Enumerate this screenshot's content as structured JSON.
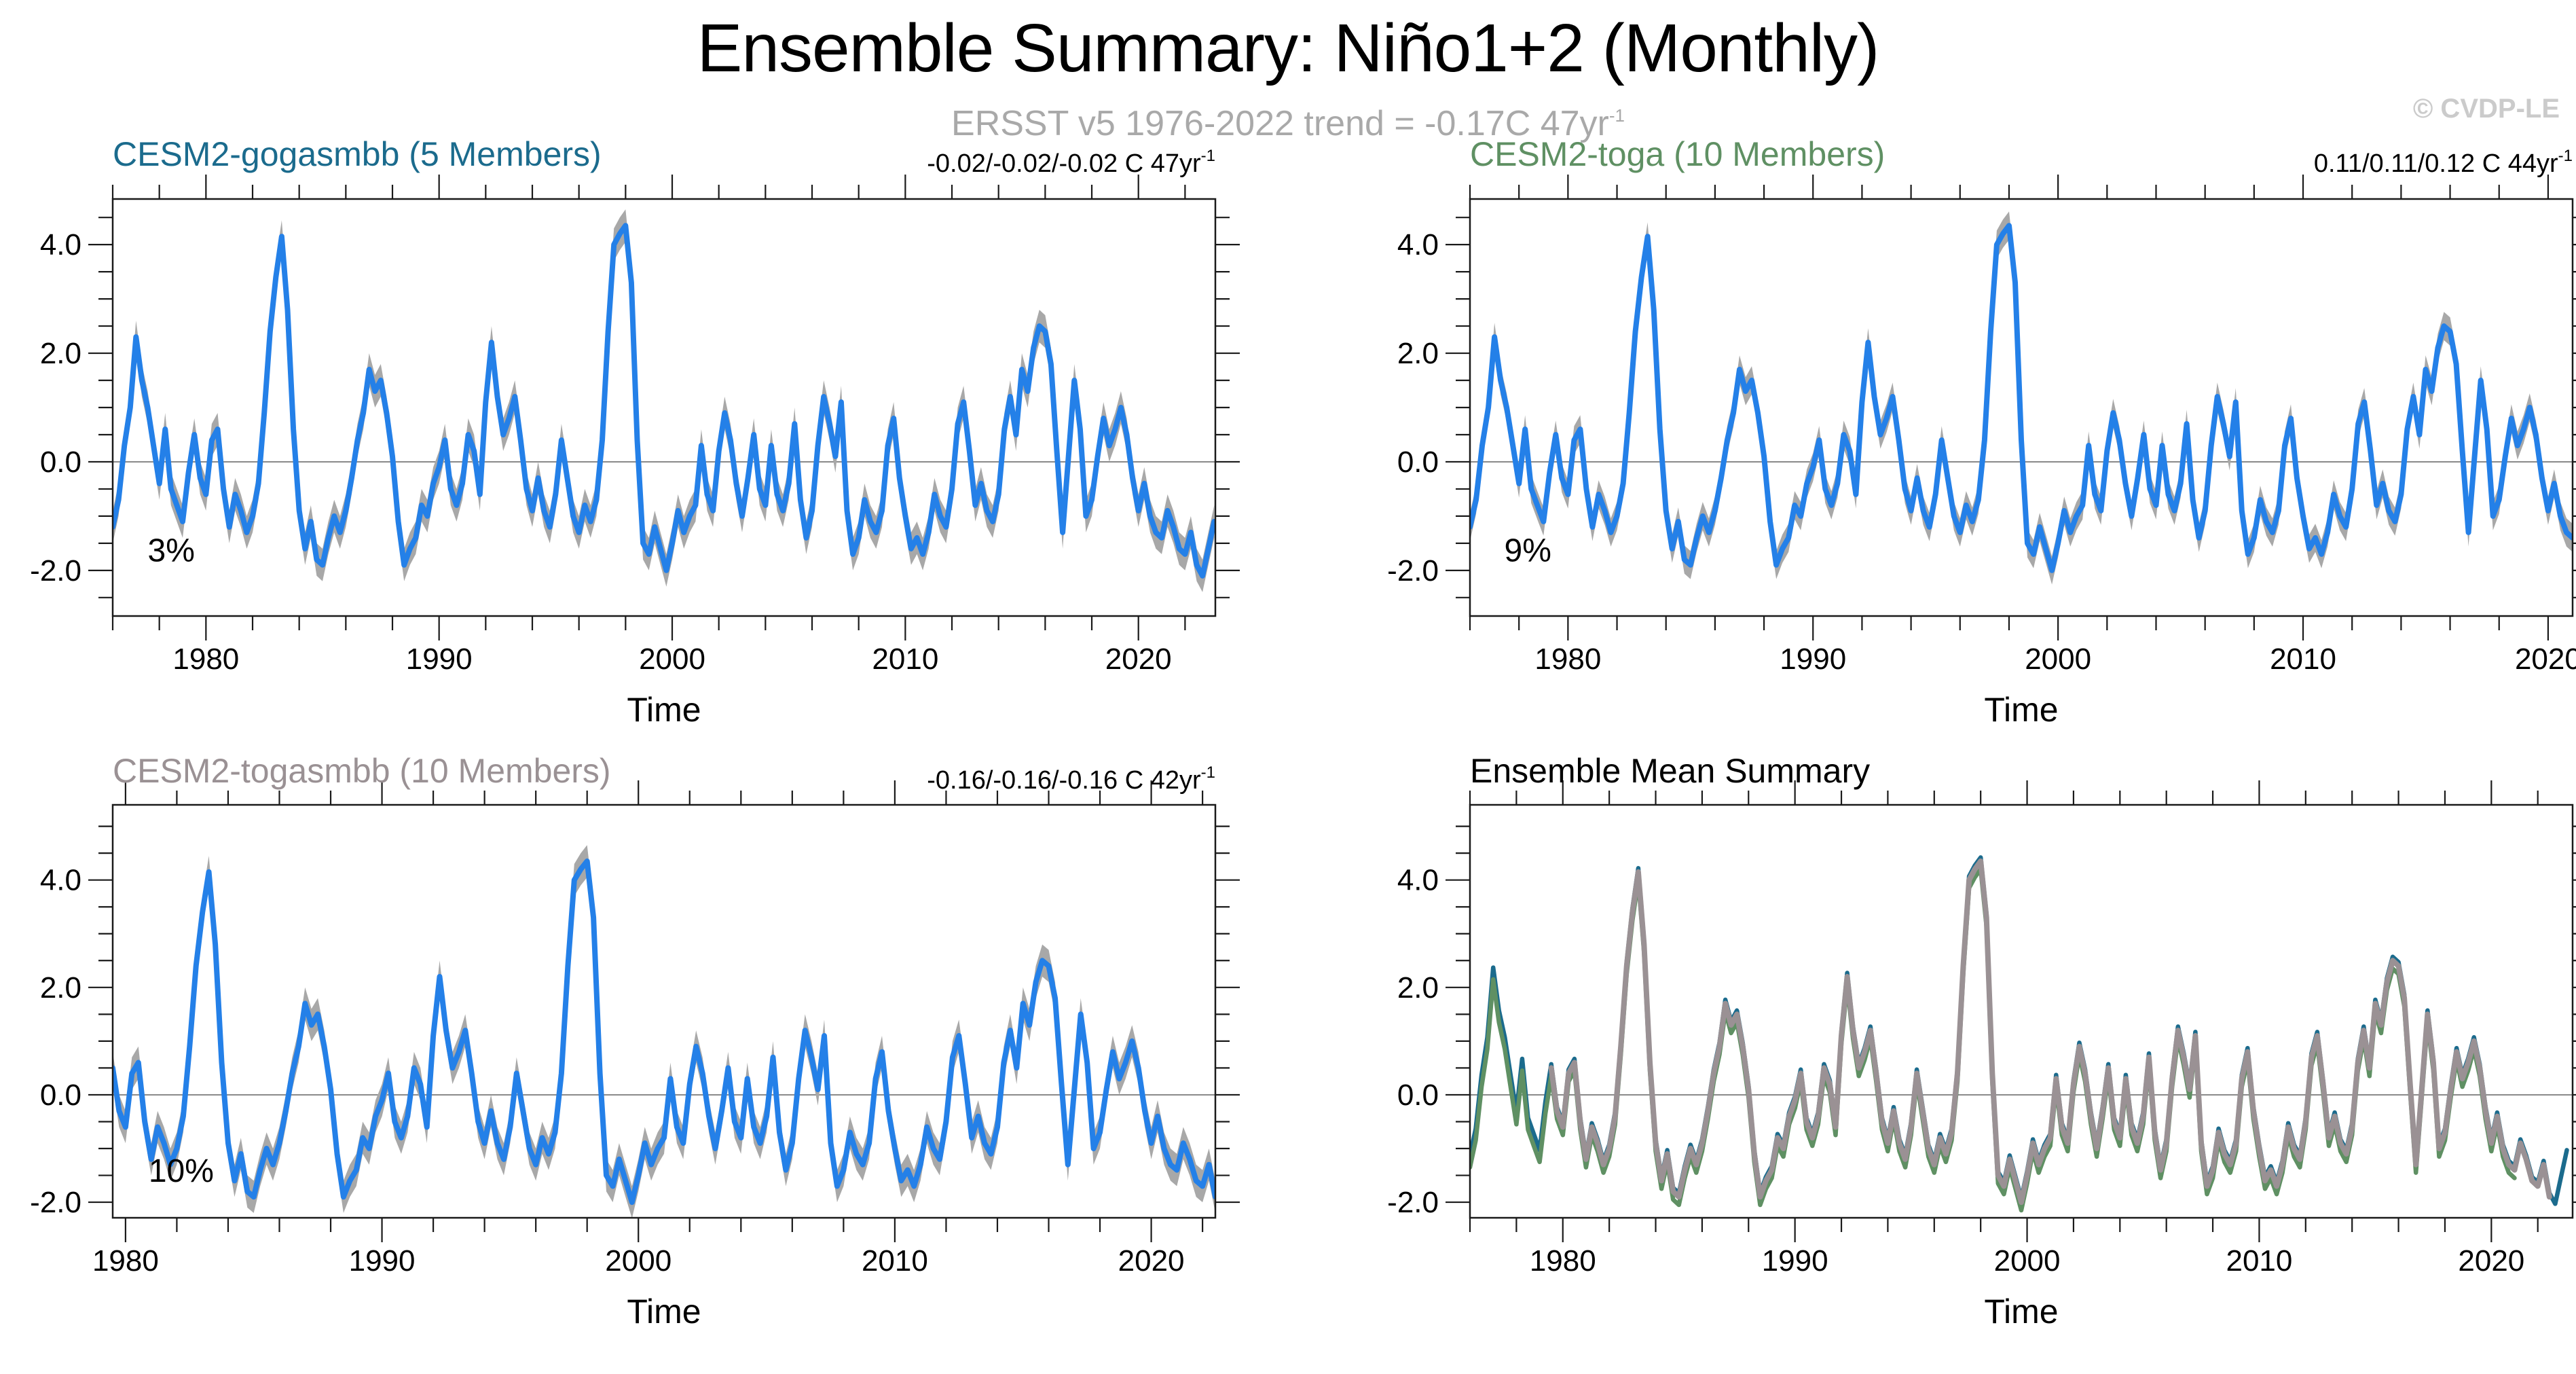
{
  "header": {
    "title": "Ensemble Summary: Niño1+2 (Monthly)",
    "subtitle": {
      "text": "ERSST v5 1976-2022 trend = -0.17C 47yr",
      "sup": "-1"
    },
    "watermark": "© CVDP-LE"
  },
  "chart_data": {
    "type": "line",
    "title": "Ensemble Summary: Niño1+2 (Monthly)",
    "reference_trend": "ERSST v5 1976-2022 trend = -0.17C 47yr-1",
    "xlabel": "Time",
    "ylabel": "",
    "x_start": 1976.0,
    "x_step_years": 0.25,
    "xticks": [
      {
        "v": 1980,
        "label": "1980"
      },
      {
        "v": 1990,
        "label": "1990"
      },
      {
        "v": 2000,
        "label": "2000"
      },
      {
        "v": 2010,
        "label": "2010"
      },
      {
        "v": 2020,
        "label": "2020"
      }
    ],
    "yticks": [
      {
        "v": -2,
        "label": "-2.0"
      },
      {
        "v": 0,
        "label": "0.0"
      },
      {
        "v": 2,
        "label": "2.0"
      },
      {
        "v": 4,
        "label": "4.0"
      }
    ],
    "x_minor_step_years": 2,
    "y_minor_step": 0.5,
    "grid": "zero-line-only",
    "colors": {
      "member_mean_line": "#2480e8",
      "member_spread_band": "#a8a8a8",
      "gogasmbb": "#1b6b8d",
      "toga": "#5f9063",
      "togasmbb": "#9a9194",
      "zero_line": "#8a8a8a",
      "frame": "#1a1a1a"
    },
    "values": [
      -1.2,
      -0.7,
      0.3,
      1.0,
      2.3,
      1.5,
      1.0,
      0.3,
      -0.4,
      0.6,
      -0.5,
      -0.8,
      -1.1,
      -0.2,
      0.5,
      -0.3,
      -0.6,
      0.4,
      0.6,
      -0.5,
      -1.2,
      -0.6,
      -0.9,
      -1.3,
      -1.0,
      -0.4,
      0.9,
      2.4,
      3.4,
      4.15,
      2.8,
      0.6,
      -0.9,
      -1.6,
      -1.1,
      -1.8,
      -1.9,
      -1.4,
      -1.0,
      -1.3,
      -0.9,
      -0.3,
      0.4,
      0.9,
      1.7,
      1.3,
      1.5,
      0.9,
      0.1,
      -1.1,
      -1.9,
      -1.6,
      -1.4,
      -0.8,
      -1.0,
      -0.4,
      -0.1,
      0.4,
      -0.5,
      -0.8,
      -0.4,
      0.5,
      0.2,
      -0.6,
      1.1,
      2.2,
      1.2,
      0.5,
      0.8,
      1.2,
      0.4,
      -0.5,
      -0.9,
      -0.3,
      -0.9,
      -1.2,
      -0.6,
      0.4,
      -0.3,
      -1.0,
      -1.3,
      -0.8,
      -1.1,
      -0.7,
      0.4,
      2.4,
      4.0,
      4.2,
      4.35,
      3.3,
      0.4,
      -1.5,
      -1.7,
      -1.2,
      -1.6,
      -2.0,
      -1.5,
      -0.9,
      -1.3,
      -1.0,
      -0.8,
      0.3,
      -0.6,
      -0.9,
      0.2,
      0.9,
      0.4,
      -0.4,
      -1.0,
      -0.3,
      0.5,
      -0.5,
      -0.8,
      0.3,
      -0.6,
      -0.9,
      -0.4,
      0.7,
      -0.7,
      -1.4,
      -0.9,
      0.3,
      1.2,
      0.7,
      0.1,
      1.1,
      -0.9,
      -1.7,
      -1.4,
      -0.7,
      -1.1,
      -1.3,
      -0.9,
      0.3,
      0.8,
      -0.3,
      -1.0,
      -1.6,
      -1.4,
      -1.7,
      -1.3,
      -0.6,
      -1.0,
      -1.2,
      -0.5,
      0.7,
      1.1,
      0.2,
      -0.8,
      -0.4,
      -0.9,
      -1.1,
      -0.6,
      0.6,
      1.2,
      0.5,
      1.7,
      1.3,
      2.1,
      2.5,
      2.4,
      1.8,
      0.2,
      -1.3,
      0.1,
      1.5,
      0.6,
      -1.0,
      -0.7,
      0.1,
      0.8,
      0.3,
      0.6,
      1.0,
      0.5,
      -0.3,
      -0.9,
      -0.4,
      -1.0,
      -1.3,
      -1.4,
      -0.9,
      -1.2,
      -1.6,
      -1.7,
      -1.3,
      -1.9,
      -2.1,
      -1.6,
      -1.1
    ],
    "panels": [
      {
        "title": "CESM2-gogasmbb (5 Members)",
        "title_color": "#1b6b8d",
        "trend": {
          "text": "-0.02/-0.02/-0.02 C 47yr",
          "sup": "-1"
        },
        "percent": {
          "label": "3%",
          "x": 1977.5,
          "y": -1.83
        },
        "x_range": [
          1976.0,
          2023.3
        ],
        "ylim": [
          -2.84,
          4.84
        ],
        "line_color": "#2480e8",
        "band_color": "#a8a8a8",
        "band_halfwidth": 0.3
      },
      {
        "title": "CESM2-toga (10 Members)",
        "title_color": "#5f9063",
        "trend": {
          "text": "0.11/0.11/0.12 C 44yr",
          "sup": "-1"
        },
        "percent": {
          "label": "9%",
          "x": 1977.4,
          "y": -1.83
        },
        "x_range": [
          1976.0,
          2021.0
        ],
        "ylim": [
          -2.84,
          4.84
        ],
        "line_color": "#2480e8",
        "band_color": "#a8a8a8",
        "band_halfwidth": 0.26
      },
      {
        "title": "CESM2-togasmbb (10 Members)",
        "title_color": "#9a9194",
        "trend": {
          "text": "-0.16/-0.16/-0.16 C 42yr",
          "sup": "-1"
        },
        "percent": {
          "label": "10%",
          "x": 1980.9,
          "y": -1.62
        },
        "x_range": [
          1979.5,
          2022.5
        ],
        "ylim": [
          -2.29,
          5.4
        ],
        "line_color": "#2480e8",
        "band_color": "#a8a8a8",
        "band_halfwidth": 0.3
      },
      {
        "title": "Ensemble Mean Summary",
        "title_color": "#000000",
        "x_range": [
          1976.0,
          2023.5
        ],
        "ylim": [
          -2.29,
          5.4
        ],
        "series": [
          {
            "name": "CESM2-gogasmbb",
            "color": "#1b6b8d",
            "x_range": [
              1976.0,
              2023.3
            ],
            "offset": 0.07,
            "width": 6.5
          },
          {
            "name": "CESM2-toga",
            "color": "#5f9063",
            "x_range": [
              1976.0,
              2021.0
            ],
            "offset": -0.15,
            "width": 6.5
          },
          {
            "name": "CESM2-togasmbb",
            "color": "#9a9194",
            "x_range": [
              1979.5,
              2022.5
            ],
            "offset": 0.0,
            "width": 8
          }
        ]
      }
    ]
  }
}
